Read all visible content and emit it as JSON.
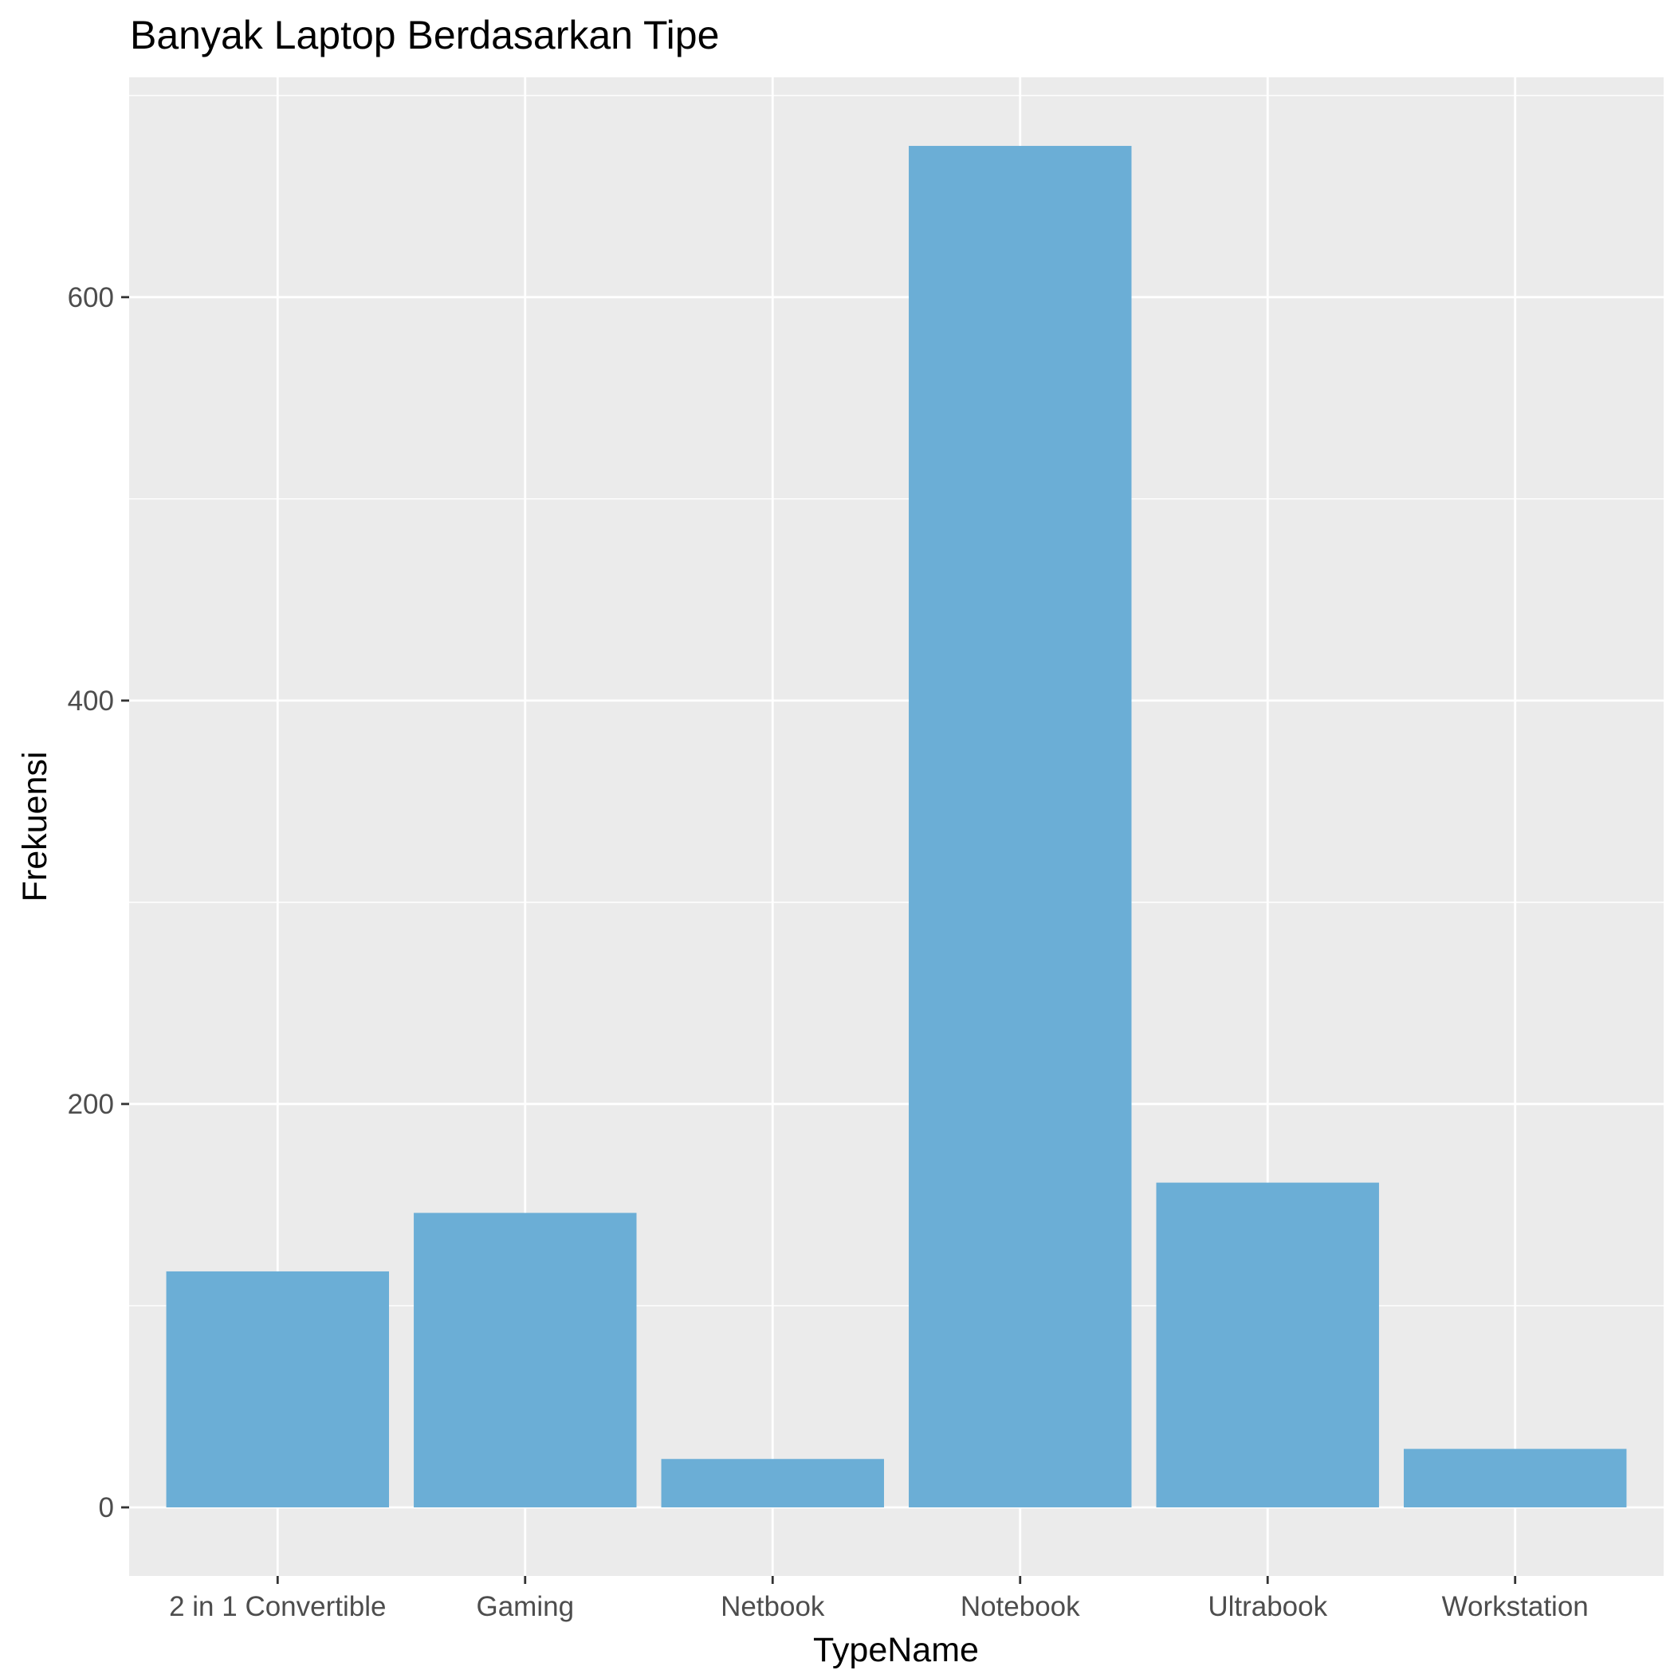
{
  "chart_data": {
    "type": "bar",
    "title": "Banyak Laptop Berdasarkan Tipe",
    "xlabel": "TypeName",
    "ylabel": "Frekuensi",
    "categories": [
      "2 in 1 Convertible",
      "Gaming",
      "Netbook",
      "Notebook",
      "Ultrabook",
      "Workstation"
    ],
    "values": [
      117,
      146,
      24,
      675,
      161,
      29
    ],
    "ylim": [
      -34,
      709
    ],
    "yticks": [
      0,
      200,
      400,
      600
    ],
    "grid": true,
    "legend": "none",
    "colors": {
      "bar": "#6baed6",
      "panel": "#ebebeb",
      "grid": "#ffffff"
    }
  }
}
